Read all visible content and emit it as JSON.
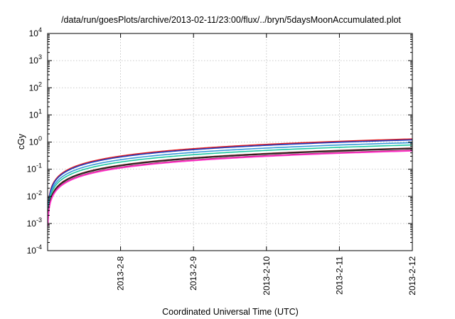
{
  "chart_data": {
    "type": "line",
    "title": "/data/run/goesPlots/archive/2013-02-11/23:00/flux/../bryn/5daysMoonAccumulated.plot",
    "xlabel": "Coordinated Universal Time (UTC)",
    "ylabel": "cGy",
    "x_ticks": [
      "2013-2-8",
      "2013-2-9",
      "2013-2-10",
      "2013-2-11",
      "2013-2-12"
    ],
    "xlim_days": [
      7.0,
      12.0
    ],
    "y_scale": "log",
    "ylim": [
      0.0001,
      10000
    ],
    "y_ticks": [
      {
        "base": "10",
        "exp": "-4"
      },
      {
        "base": "10",
        "exp": "-3"
      },
      {
        "base": "10",
        "exp": "-2"
      },
      {
        "base": "10",
        "exp": "-1"
      },
      {
        "base": "10",
        "exp": "0"
      },
      {
        "base": "10",
        "exp": "1"
      },
      {
        "base": "10",
        "exp": "2"
      },
      {
        "base": "10",
        "exp": "3"
      },
      {
        "base": "10",
        "exp": "4"
      }
    ],
    "grid": true,
    "series": [
      {
        "color": "#e31a1c",
        "final": 1.3
      },
      {
        "color": "#1f3fbf",
        "final": 1.2
      },
      {
        "color": "#3a9ad9",
        "final": 0.95
      },
      {
        "color": "#1ec8a0",
        "final": 0.78
      },
      {
        "color": "#6a1f1f",
        "final": 0.6
      },
      {
        "color": "#222222",
        "final": 0.57
      },
      {
        "color": "#c4267a",
        "final": 0.5
      },
      {
        "color": "#ff33cc",
        "final": 0.47
      }
    ]
  }
}
